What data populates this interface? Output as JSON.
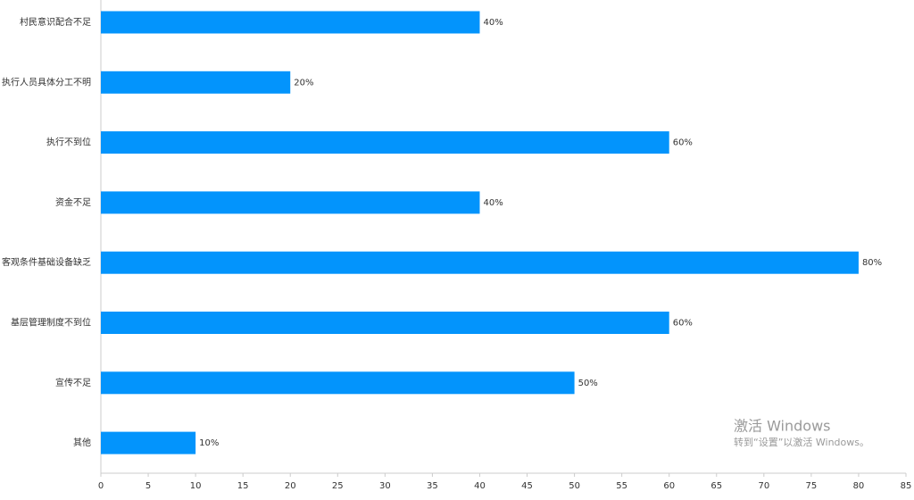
{
  "chart_data": {
    "type": "hbar",
    "categories": [
      "村民意识配合不足",
      "执行人员具体分工不明",
      "执行不到位",
      "资金不足",
      "客观条件基础设备缺乏",
      "基层管理制度不到位",
      "宣传不足",
      "其他"
    ],
    "values": [
      40,
      20,
      60,
      40,
      80,
      60,
      50,
      10
    ],
    "value_labels": [
      "40%",
      "20%",
      "60%",
      "40%",
      "80%",
      "60%",
      "50%",
      "10%"
    ],
    "color": "#0394fc",
    "xlim": [
      0,
      85
    ],
    "xticks": [
      0,
      5,
      10,
      15,
      20,
      25,
      30,
      35,
      40,
      45,
      50,
      55,
      60,
      65,
      70,
      75,
      80,
      85
    ]
  },
  "watermark": {
    "title": "激活 Windows",
    "subtitle": "转到“设置”以激活 Windows。"
  }
}
